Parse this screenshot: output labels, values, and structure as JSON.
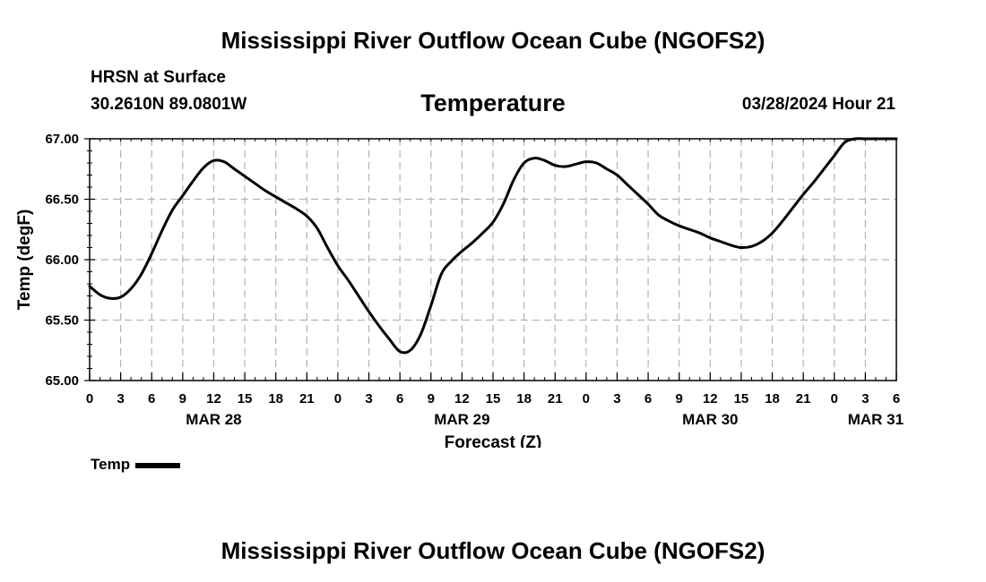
{
  "header": {
    "main_title": "Mississippi River Outflow Ocean Cube (NGOFS2)",
    "station": "HRSN at Surface",
    "coords": "30.2610N  89.0801W",
    "variable": "Temperature",
    "datetime": "03/28/2024 Hour 21"
  },
  "footer": {
    "repeat_title": "Mississippi River Outflow Ocean Cube (NGOFS2)"
  },
  "legend": {
    "label": "Temp"
  },
  "chart_data": {
    "type": "line",
    "xlabel": "Forecast (Z)",
    "ylabel": "Temp (degF)",
    "ylim": [
      65.0,
      67.0
    ],
    "xlim": [
      0,
      78
    ],
    "x_units": "hours from Mar 28 00Z",
    "yticks": [
      65.0,
      65.5,
      66.0,
      66.5,
      67.0
    ],
    "ytick_labels": [
      "65.00",
      "65.50",
      "66.00",
      "66.50",
      "67.00"
    ],
    "xticks": [
      0,
      3,
      6,
      9,
      12,
      15,
      18,
      21,
      24,
      27,
      30,
      33,
      36,
      39,
      42,
      45,
      48,
      51,
      54,
      57,
      60,
      63,
      66,
      69,
      72,
      75,
      78
    ],
    "xtick_labels": [
      "0",
      "3",
      "6",
      "9",
      "12",
      "15",
      "18",
      "21",
      "0",
      "3",
      "6",
      "9",
      "12",
      "15",
      "18",
      "21",
      "0",
      "3",
      "6",
      "9",
      "12",
      "15",
      "18",
      "21",
      "0",
      "3",
      "6"
    ],
    "date_labels": [
      {
        "label": "MAR 28",
        "x": 12
      },
      {
        "label": "MAR 29",
        "x": 36
      },
      {
        "label": "MAR 30",
        "x": 60
      },
      {
        "label": "MAR 31",
        "x": 76
      }
    ],
    "grid": true,
    "legend_position": "bottom-left",
    "series": [
      {
        "name": "Temp",
        "color": "#000000",
        "x": [
          0,
          1,
          2,
          3,
          4,
          5,
          6,
          7,
          8,
          9,
          10,
          11,
          12,
          13,
          14,
          15,
          16,
          17,
          18,
          19,
          20,
          21,
          22,
          23,
          24,
          25,
          26,
          27,
          28,
          29,
          30,
          31,
          32,
          33,
          34,
          35,
          36,
          37,
          38,
          39,
          40,
          41,
          42,
          43,
          44,
          45,
          46,
          47,
          48,
          49,
          50,
          51,
          52,
          53,
          54,
          55,
          56,
          57,
          58,
          59,
          60,
          61,
          62,
          63,
          64,
          65,
          66,
          67,
          68,
          69,
          70,
          71,
          72,
          73,
          74,
          75,
          76,
          77,
          78
        ],
        "values": [
          65.78,
          65.71,
          65.68,
          65.69,
          65.76,
          65.88,
          66.05,
          66.24,
          66.41,
          66.53,
          66.65,
          66.76,
          66.82,
          66.81,
          66.75,
          66.69,
          66.63,
          66.57,
          66.52,
          66.47,
          66.42,
          66.36,
          66.26,
          66.1,
          65.95,
          65.83,
          65.7,
          65.57,
          65.45,
          65.34,
          65.24,
          65.25,
          65.38,
          65.62,
          65.88,
          65.99,
          66.07,
          66.14,
          66.22,
          66.31,
          66.46,
          66.66,
          66.8,
          66.84,
          66.82,
          66.78,
          66.77,
          66.79,
          66.81,
          66.8,
          66.75,
          66.7,
          66.62,
          66.54,
          66.46,
          66.37,
          66.32,
          66.28,
          66.25,
          66.22,
          66.18,
          66.15,
          66.12,
          66.1,
          66.11,
          66.15,
          66.22,
          66.32,
          66.43,
          66.54,
          66.64,
          66.75,
          66.86,
          66.97,
          67.0,
          67.0,
          67.0,
          67.0,
          67.0
        ]
      }
    ]
  }
}
